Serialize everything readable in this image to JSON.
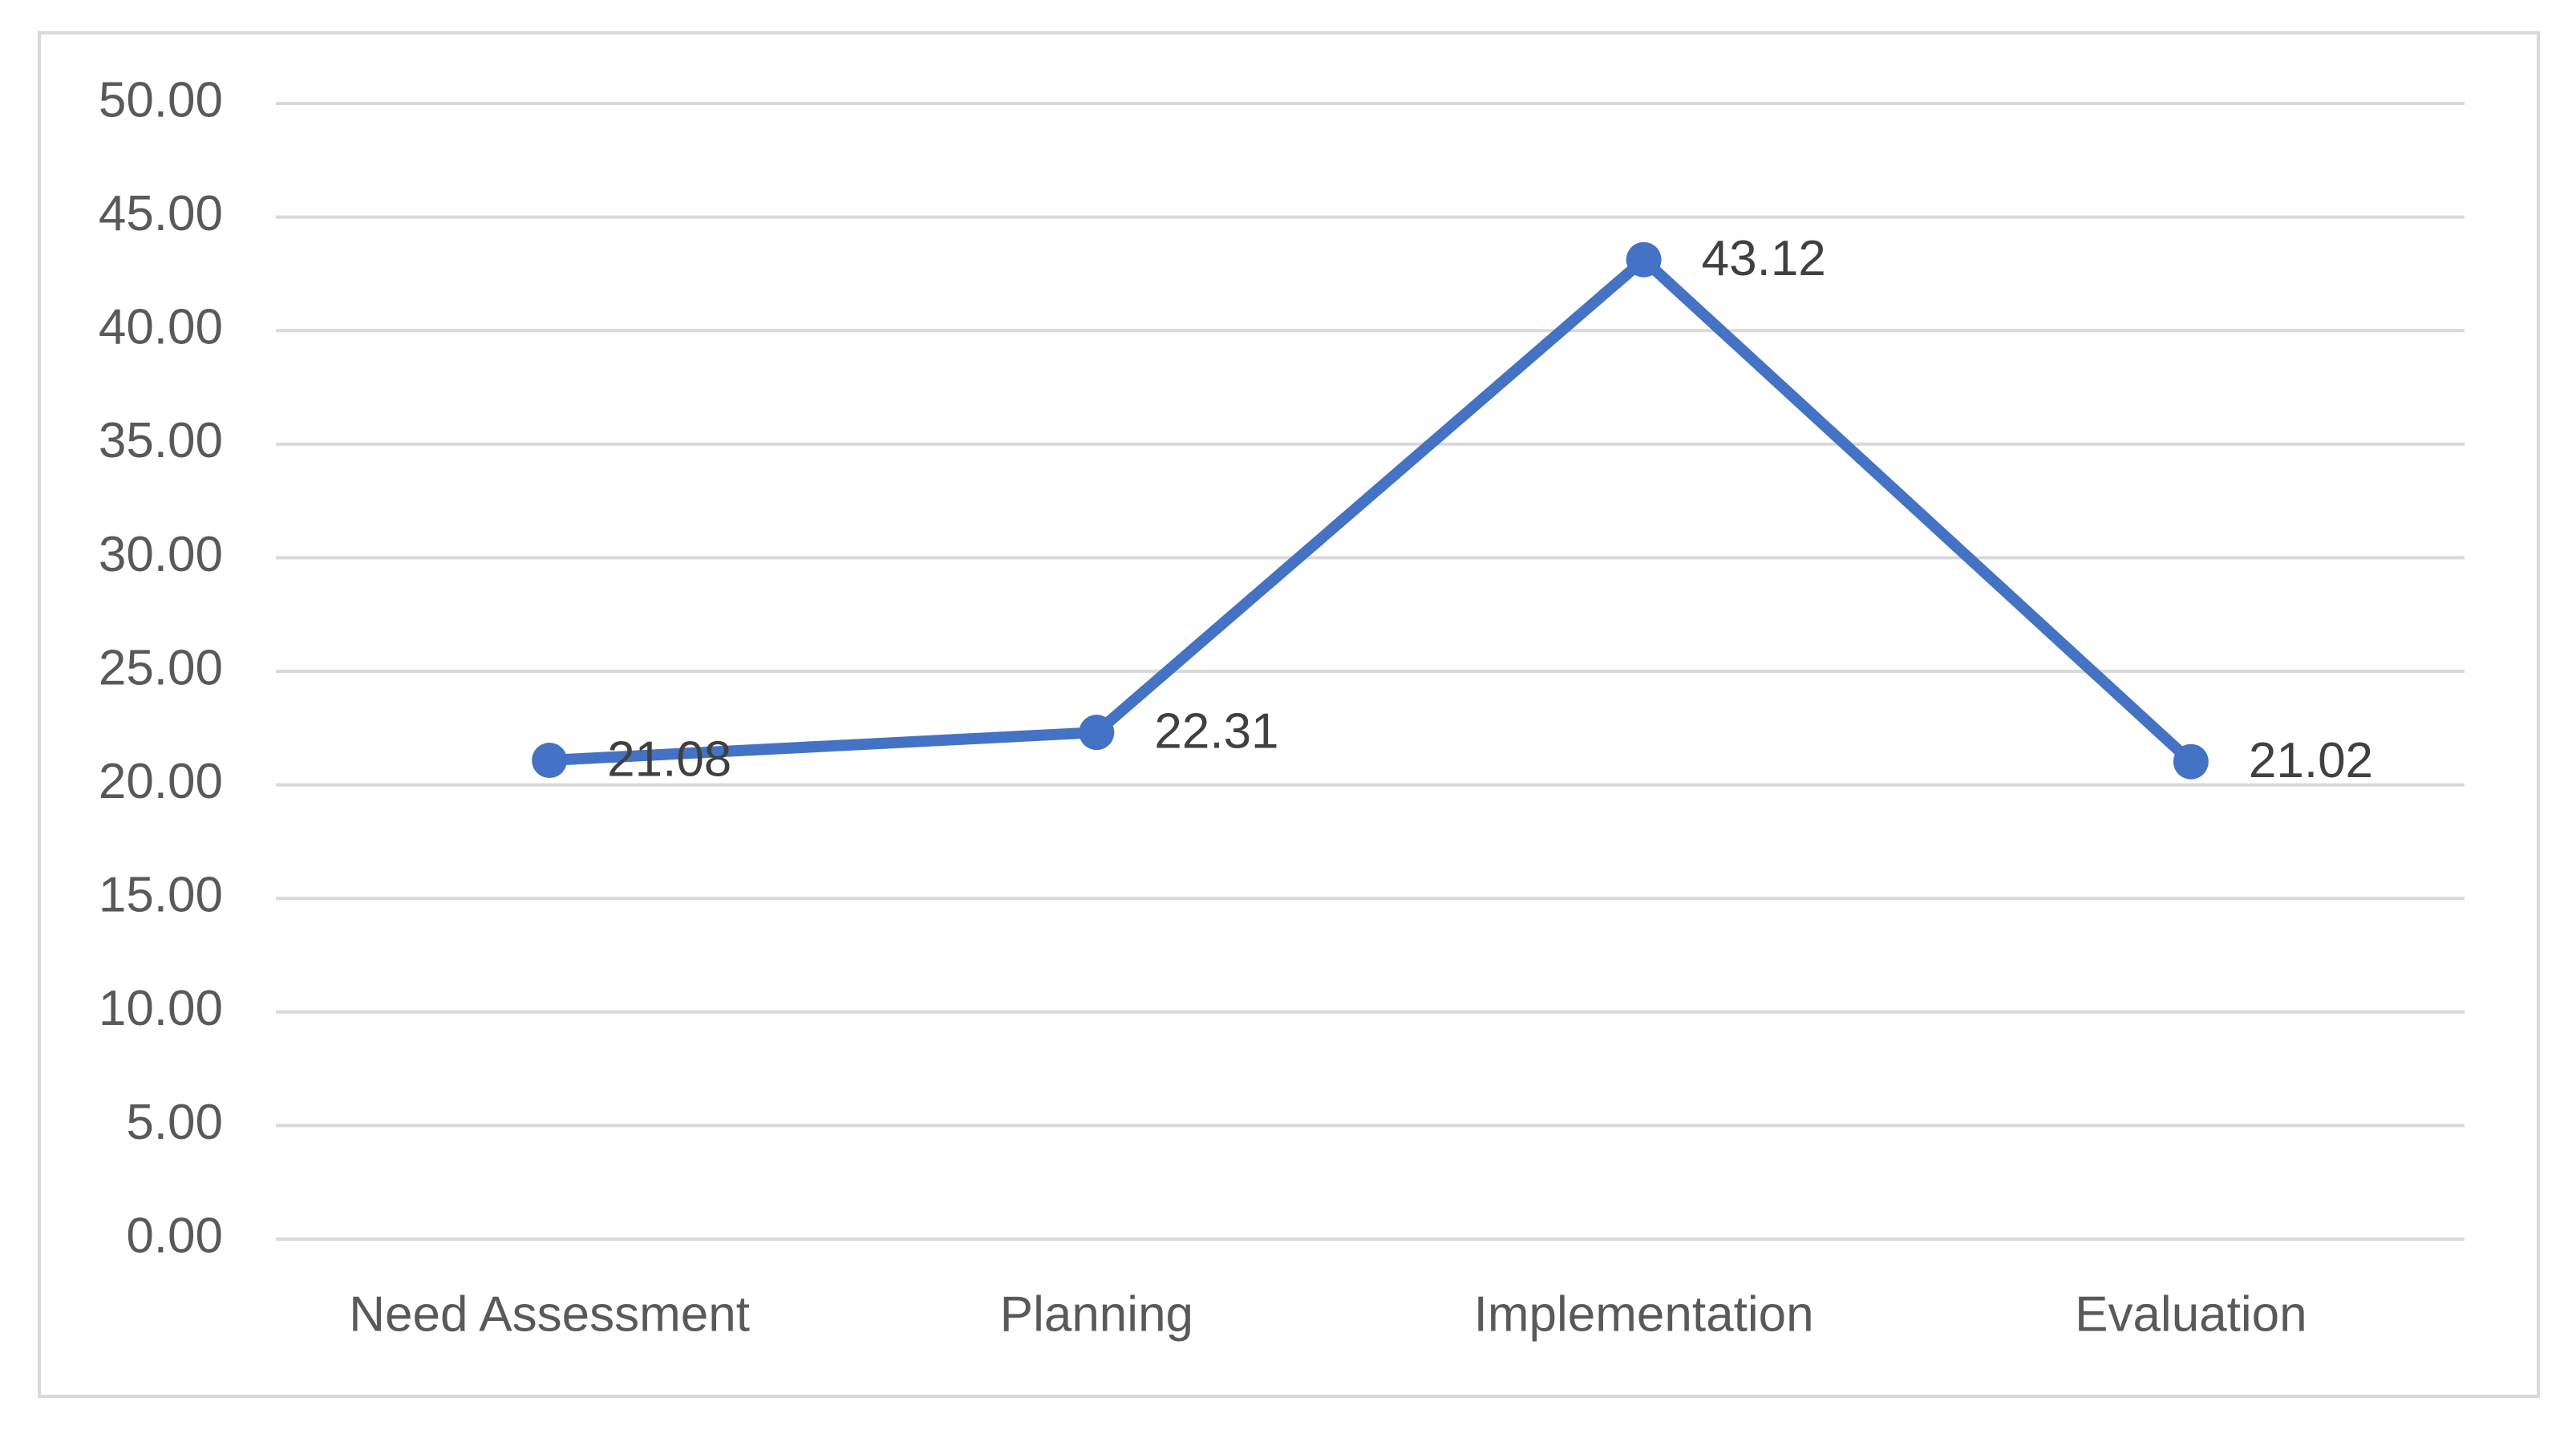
{
  "chart_data": {
    "type": "line",
    "categories": [
      "Need Assessment",
      "Planning",
      "Implementation",
      "Evaluation"
    ],
    "values": [
      21.08,
      22.31,
      43.12,
      21.02
    ],
    "color": "#4472c4",
    "ylim": [
      0,
      50
    ],
    "yticks": [
      {
        "value": 0,
        "label": "0.00"
      },
      {
        "value": 5,
        "label": "5.00"
      },
      {
        "value": 10,
        "label": "10.00"
      },
      {
        "value": 15,
        "label": "15.00"
      },
      {
        "value": 20,
        "label": "20.00"
      },
      {
        "value": 25,
        "label": "25.00"
      },
      {
        "value": 30,
        "label": "30.00"
      },
      {
        "value": 35,
        "label": "35.00"
      },
      {
        "value": 40,
        "label": "40.00"
      },
      {
        "value": 45,
        "label": "45.00"
      },
      {
        "value": 50,
        "label": "50.00"
      }
    ],
    "grid": true
  }
}
